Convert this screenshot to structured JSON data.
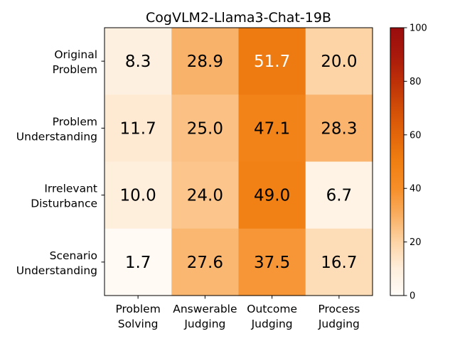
{
  "chart_data": {
    "type": "heatmap",
    "title": "CogVLM2-Llama3-Chat-19B",
    "x_categories": [
      [
        "Problem",
        "Solving"
      ],
      [
        "Answerable",
        "Judging"
      ],
      [
        "Outcome",
        "Judging"
      ],
      [
        "Process",
        "Judging"
      ]
    ],
    "y_categories": [
      [
        "Original",
        "Problem"
      ],
      [
        "Problem",
        "Understanding"
      ],
      [
        "Irrelevant",
        "Disturbance"
      ],
      [
        "Scenario",
        "Understanding"
      ]
    ],
    "values": [
      [
        8.3,
        28.9,
        51.7,
        20.0
      ],
      [
        11.7,
        25.0,
        47.1,
        28.3
      ],
      [
        10.0,
        24.0,
        49.0,
        6.7
      ],
      [
        1.7,
        27.6,
        37.5,
        16.7
      ]
    ],
    "cell_labels": [
      [
        "8.3",
        "28.9",
        "51.7",
        "20.0"
      ],
      [
        "11.7",
        "25.0",
        "47.1",
        "28.3"
      ],
      [
        "10.0",
        "24.0",
        "49.0",
        "6.7"
      ],
      [
        "1.7",
        "27.6",
        "37.5",
        "16.7"
      ]
    ],
    "colorbar": {
      "range": [
        0,
        100
      ],
      "ticks": [
        0,
        20,
        40,
        60,
        80,
        100
      ],
      "tick_labels": [
        "0",
        "20",
        "40",
        "60",
        "80",
        "100"
      ],
      "colormap": "orange-red sequential"
    }
  }
}
